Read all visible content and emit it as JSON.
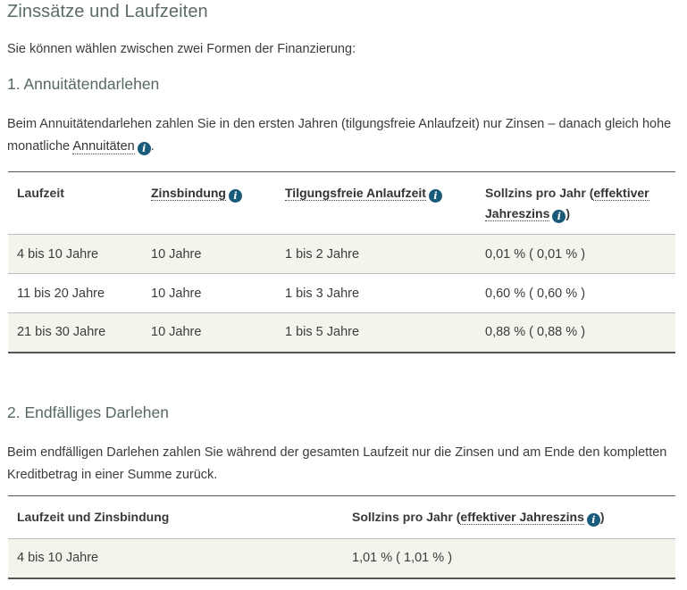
{
  "title": "Zinssätze und Laufzeiten",
  "intro": "Sie können wählen zwischen zwei Formen der Finanzierung:",
  "section1": {
    "heading": "1. Annuitätendarlehen",
    "text_before": "Beim Annuitätendarlehen zahlen Sie in den ersten Jahren (tilgungsfreie Anlaufzeit) nur Zinsen – danach gleich hohe monatliche ",
    "term": "Annuitäten",
    "text_after": ".",
    "table": {
      "headers": {
        "col1": "Laufzeit",
        "col2": "Zinsbindung",
        "col3": "Tilgungsfreie Anlaufzeit",
        "col4_prefix": "Sollzins pro Jahr (",
        "col4_term": "effektiver Jahreszins",
        "col4_suffix": ")"
      },
      "rows": [
        {
          "laufzeit": "4 bis 10 Jahre",
          "zinsbindung": "10 Jahre",
          "anlaufzeit": "1 bis 2 Jahre",
          "sollzins": "0,01 % ( 0,01 % )"
        },
        {
          "laufzeit": "11 bis 20 Jahre",
          "zinsbindung": "10 Jahre",
          "anlaufzeit": "1 bis 3 Jahre",
          "sollzins": "0,60 % ( 0,60 % )"
        },
        {
          "laufzeit": "21 bis 30 Jahre",
          "zinsbindung": "10 Jahre",
          "anlaufzeit": "1 bis 5 Jahre",
          "sollzins": "0,88 % ( 0,88 % )"
        }
      ]
    }
  },
  "section2": {
    "heading": "2. Endfälliges Darlehen",
    "text": "Beim endfälligen Darlehen zahlen Sie während der gesamten Laufzeit nur die Zinsen und am Ende den kompletten Kreditbetrag in einer Summe zurück.",
    "table": {
      "headers": {
        "col1": "Laufzeit und Zinsbindung",
        "col2_prefix": "Sollzins pro Jahr (",
        "col2_term": "effektiver Jahreszins",
        "col2_suffix": ")"
      },
      "rows": [
        {
          "laufzeit": "4 bis 10 Jahre",
          "sollzins": "1,01 % ( 1,01 % )"
        }
      ]
    }
  },
  "icons": {
    "info": "info-icon",
    "info_glyph": "i"
  },
  "colors": {
    "info_badge": "#1a5a7a",
    "row_shade": "#f4f3ec",
    "heading": "#56695f"
  }
}
